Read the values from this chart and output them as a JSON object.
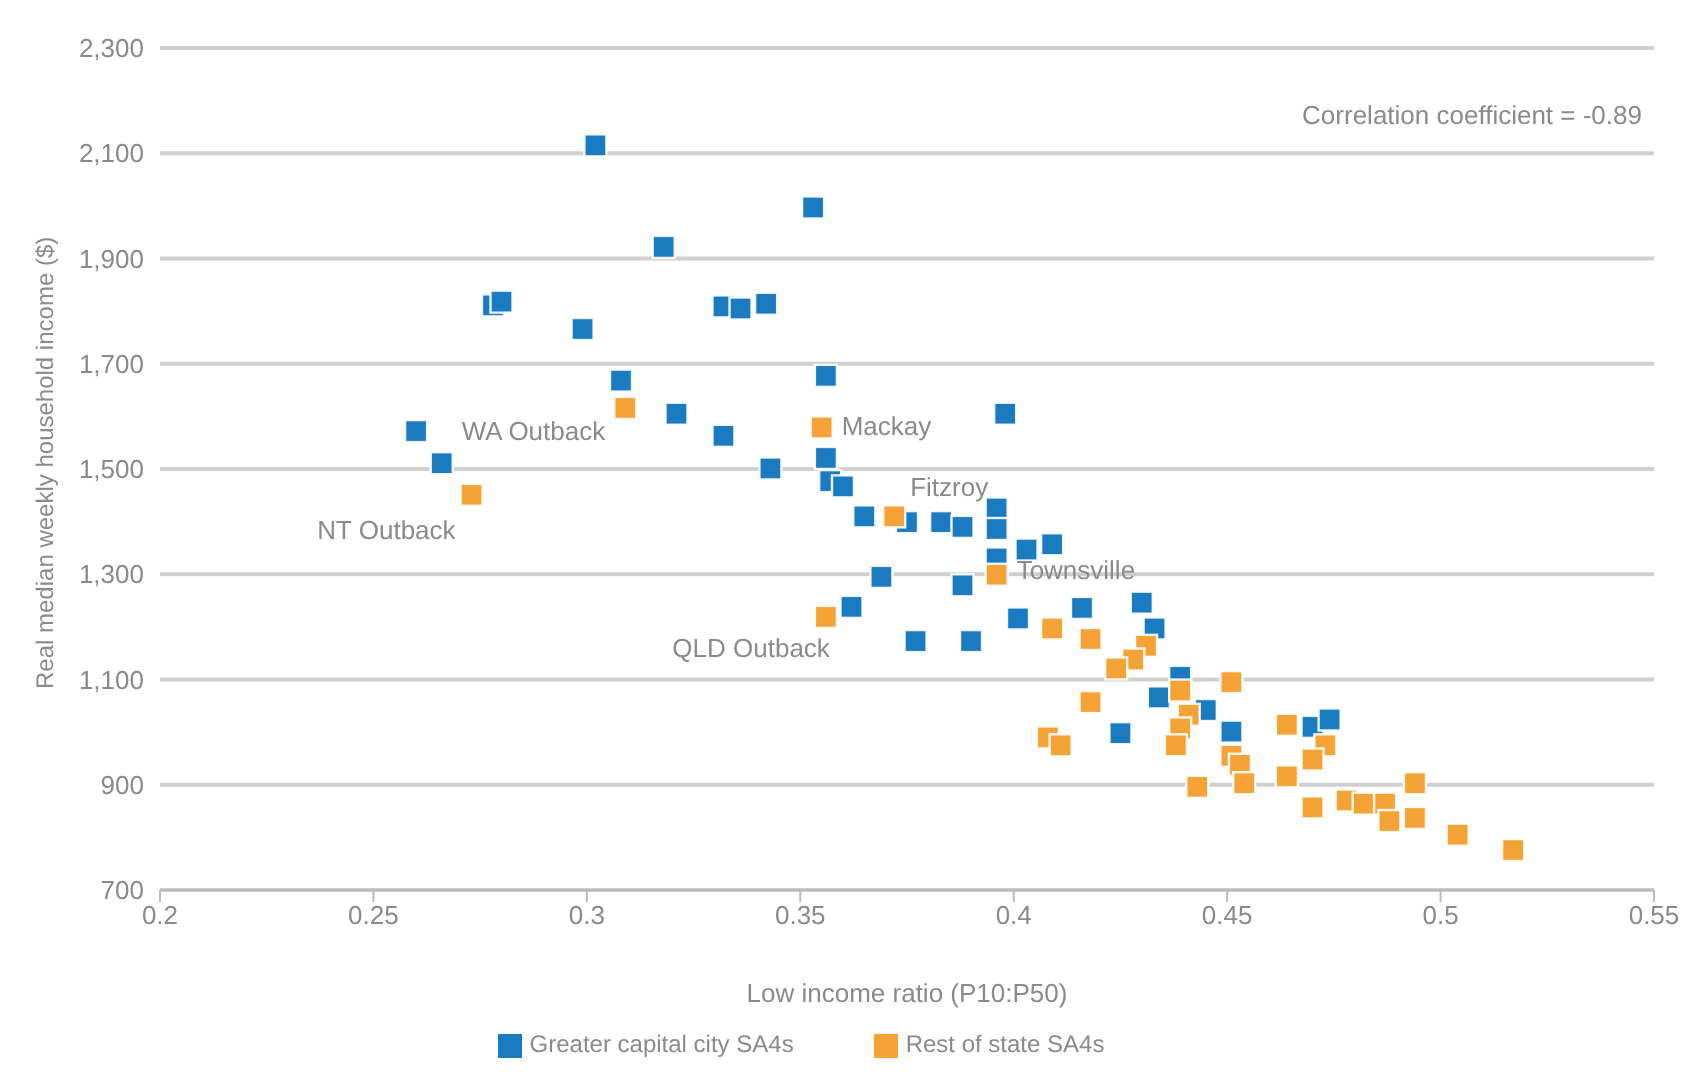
{
  "chart_data": {
    "type": "scatter",
    "xlabel": "Low income ratio (P10:P50)",
    "ylabel": "Real median weekly household income ($)",
    "xlim": [
      0.2,
      0.55
    ],
    "xticks": [
      0.2,
      0.25,
      0.3,
      0.35,
      0.4,
      0.45,
      0.5,
      0.55
    ],
    "ylim": [
      700,
      2300
    ],
    "yticks": [
      {
        "value": 700,
        "label": "700"
      },
      {
        "value": 900,
        "label": "900"
      },
      {
        "value": 1100,
        "label": "1,100"
      },
      {
        "value": 1300,
        "label": "1,300"
      },
      {
        "value": 1500,
        "label": "1,500"
      },
      {
        "value": 1700,
        "label": "1,700"
      },
      {
        "value": 1900,
        "label": "1,900"
      },
      {
        "value": 2100,
        "label": "2,100"
      },
      {
        "value": 2300,
        "label": "2,300"
      }
    ],
    "grid": "y",
    "legend": "bottom",
    "marker": "square",
    "series": [
      {
        "name": "Greater capital city SA4s",
        "color": "#1b7bc0",
        "x": [
          0.302,
          0.353,
          0.318,
          0.278,
          0.28,
          0.299,
          0.332,
          0.336,
          0.342,
          0.308,
          0.356,
          0.321,
          0.26,
          0.332,
          0.266,
          0.343,
          0.356,
          0.398,
          0.357,
          0.36,
          0.365,
          0.375,
          0.383,
          0.388,
          0.396,
          0.396,
          0.403,
          0.409,
          0.396,
          0.369,
          0.388,
          0.362,
          0.377,
          0.39,
          0.401,
          0.416,
          0.43,
          0.433,
          0.439,
          0.434,
          0.445,
          0.451,
          0.425,
          0.47,
          0.474
        ],
        "values": [
          2115,
          1997,
          1922,
          1811,
          1818,
          1766,
          1809,
          1805,
          1814,
          1668,
          1677,
          1605,
          1572,
          1563,
          1511,
          1501,
          1521,
          1605,
          1477,
          1467,
          1410,
          1399,
          1399,
          1390,
          1425,
          1386,
          1347,
          1357,
          1330,
          1295,
          1279,
          1238,
          1173,
          1173,
          1216,
          1236,
          1246,
          1197,
          1105,
          1066,
          1042,
          1001,
          998,
          1010,
          1024
        ]
      },
      {
        "name": "Rest of state SA4s",
        "color": "#f5a236",
        "x": [
          0.309,
          0.355,
          0.273,
          0.372,
          0.396,
          0.356,
          0.409,
          0.418,
          0.431,
          0.428,
          0.424,
          0.418,
          0.439,
          0.451,
          0.441,
          0.439,
          0.438,
          0.408,
          0.411,
          0.451,
          0.453,
          0.454,
          0.443,
          0.464,
          0.473,
          0.47,
          0.464,
          0.47,
          0.478,
          0.482,
          0.487,
          0.494,
          0.488,
          0.494,
          0.504,
          0.517
        ],
        "values": [
          1616,
          1579,
          1451,
          1410,
          1299,
          1219,
          1197,
          1177,
          1164,
          1138,
          1121,
          1057,
          1079,
          1095,
          1033,
          1007,
          975,
          990,
          975,
          955,
          938,
          903,
          896,
          1014,
          975,
          948,
          916,
          857,
          870,
          864,
          864,
          903,
          831,
          837,
          805,
          776
        ]
      }
    ],
    "annotations": [
      "Correlation coefficient = -0.89",
      {
        "text": "WA Outback",
        "x": 0.309,
        "y": 1616
      },
      {
        "text": "NT Outback",
        "x": 0.273,
        "y": 1451
      },
      {
        "text": "Mackay",
        "x": 0.355,
        "y": 1579
      },
      {
        "text": "Fitzroy",
        "x": 0.372,
        "y": 1410
      },
      {
        "text": "Townsville",
        "x": 0.396,
        "y": 1299
      },
      {
        "text": "QLD Outback",
        "x": 0.356,
        "y": 1219
      }
    ]
  }
}
